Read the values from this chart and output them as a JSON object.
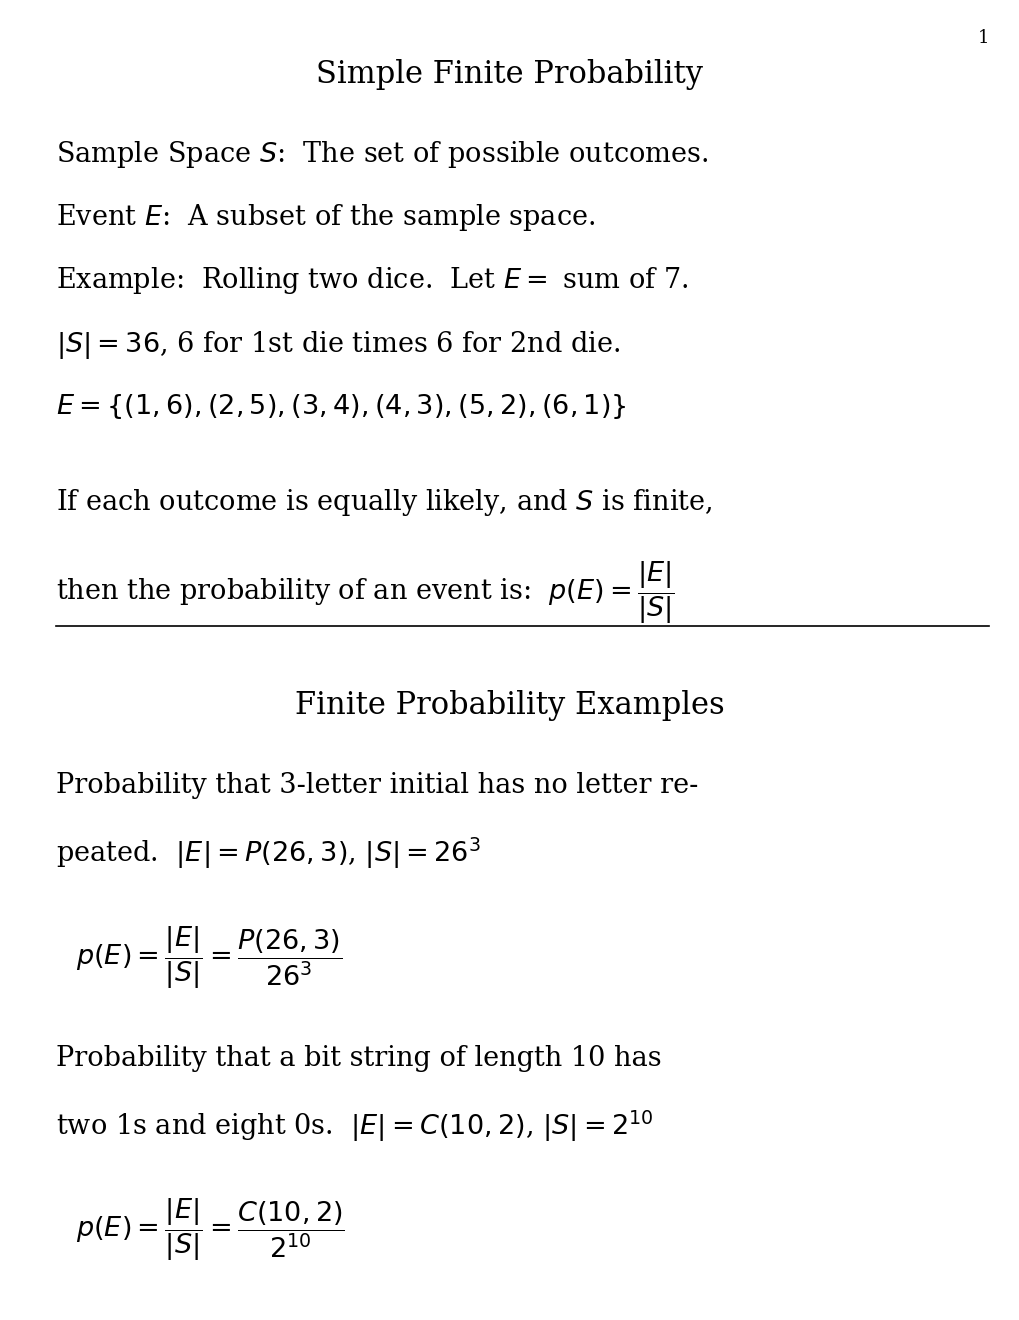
{
  "bg_color": "#ffffff",
  "text_color": "#000000",
  "page_number": "1",
  "title1": "Simple Finite Probability",
  "title2": "Finite Probability Examples",
  "line1": "Sample Space $\\mathit{S}$:  The set of possible outcomes.",
  "line2": "Event $\\mathit{E}$:  A subset of the sample space.",
  "line3": "Example:  Rolling two dice.  Let $E =$ sum of 7.",
  "line4": "$|S| = 36$, 6 for 1st die times 6 for 2nd die.",
  "line5": "$E = \\{(1,6),(2,5),(3,4),(4,3),(5,2),(6,1)\\}$",
  "line6": "If each outcome is equally likely, and $S$ is finite,",
  "line7_text": "then the probability of an event is:  $p(E) = $",
  "line7_frac": "$\\dfrac{|E|}{|S|}$",
  "line8": "Probability that 3-letter initial has no letter re-",
  "line9": "peated.  $|E| = P(26,3)$, $|S| = 26^3$",
  "line10_frac": "$p(E) = \\dfrac{|E|}{|S|} = \\dfrac{P(26,3)}{26^3}$",
  "line11": "Probability that a bit string of length 10 has",
  "line12": "two 1s and eight 0s.  $|E| = C(10,2)$, $|S| = 2^{10}$",
  "line13_frac": "$p(E) = \\dfrac{|E|}{|S|} = \\dfrac{C(10,2)}{2^{10}}$"
}
